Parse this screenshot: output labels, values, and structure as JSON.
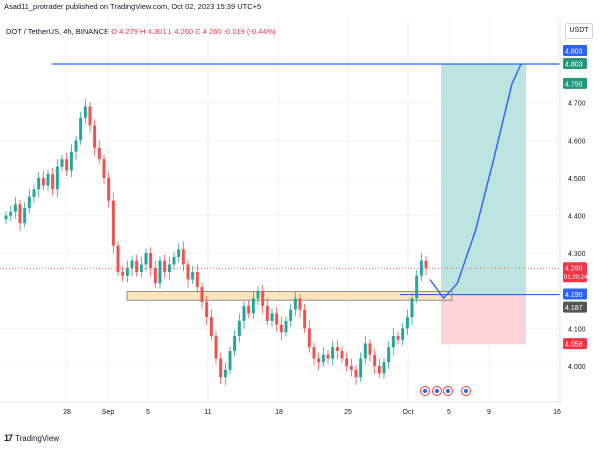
{
  "header": {
    "published_text": "Asad11_protrader published on TradingView.com, Oct 02, 2023 15:39 UTC+5"
  },
  "legend": {
    "symbol": "DOT / TetherUS, 4h, BINANCE",
    "open": "O 4.279",
    "high": "H 4.301",
    "low": "L 4.260",
    "close": "C 4.260",
    "change": "-0.019 (-0.44%)"
  },
  "currency_label": "USDT",
  "footer": {
    "brand": "TradingView",
    "logo_icon": "tradingview-logo-icon"
  },
  "colors": {
    "up": "#26a69a",
    "down": "#ef5350",
    "blue_line": "#2962ff",
    "target_zone": "#b2dfdb",
    "stop_zone": "#ffcdd2",
    "support_zone": "#fde3b6",
    "last_price_badge": "#f23645",
    "target_badge": "#22997e"
  },
  "chart_data": {
    "type": "candlestick",
    "symbol": "DOT/USDT",
    "timeframe": "4h",
    "exchange": "BINANCE",
    "y_ticks": [
      "4.700",
      "4.600",
      "4.500",
      "4.400",
      "4.300",
      "4.100",
      "4.000"
    ],
    "ylim": [
      3.9,
      4.83
    ],
    "x_ticks": [
      "28",
      "Sep",
      "5",
      "11",
      "18",
      "25",
      "Oct",
      "5",
      "9",
      "16"
    ],
    "price_axis_badges": [
      {
        "value": "4.803",
        "color": "#2962ff"
      },
      {
        "value": "4.803",
        "color": "#22997e"
      },
      {
        "value": "4.750",
        "color": "#22997e"
      },
      {
        "value": "4.260",
        "sub": "01:20:24",
        "color": "#f23645"
      },
      {
        "value": "4.190",
        "color": "#2962ff"
      },
      {
        "value": "4.187",
        "color": "#555555"
      },
      {
        "value": "4.058",
        "color": "#f23645"
      }
    ],
    "last_price": 4.26,
    "resistance_line": 4.803,
    "support_zone": [
      4.175,
      4.198
    ],
    "support_line": 4.19,
    "position": {
      "entry": 4.187,
      "target": 4.803,
      "stop": 4.058
    },
    "projected_path": [
      {
        "t": 0.0,
        "p": 4.23
      },
      {
        "t": 0.15,
        "p": 4.18
      },
      {
        "t": 0.3,
        "p": 4.22
      },
      {
        "t": 0.5,
        "p": 4.36
      },
      {
        "t": 0.7,
        "p": 4.55
      },
      {
        "t": 0.9,
        "p": 4.75
      },
      {
        "t": 1.0,
        "p": 4.803
      }
    ],
    "candles_close": [
      4.4,
      4.41,
      4.43,
      4.38,
      4.42,
      4.45,
      4.47,
      4.5,
      4.48,
      4.51,
      4.47,
      4.53,
      4.55,
      4.52,
      4.57,
      4.6,
      4.66,
      4.69,
      4.64,
      4.58,
      4.55,
      4.5,
      4.44,
      4.32,
      4.25,
      4.24,
      4.26,
      4.28,
      4.25,
      4.27,
      4.3,
      4.26,
      4.22,
      4.28,
      4.25,
      4.27,
      4.29,
      4.31,
      4.27,
      4.23,
      4.25,
      4.21,
      4.17,
      4.13,
      4.08,
      4.02,
      3.97,
      3.99,
      4.04,
      4.08,
      4.12,
      4.16,
      4.14,
      4.18,
      4.2,
      4.16,
      4.12,
      4.14,
      4.11,
      4.09,
      4.12,
      4.15,
      4.18,
      4.15,
      4.1,
      4.05,
      4.02,
      4.01,
      4.03,
      4.02,
      4.05,
      4.04,
      4.02,
      4.0,
      3.99,
      3.97,
      4.02,
      4.06,
      4.03,
      4.0,
      3.98,
      4.01,
      4.05,
      4.08,
      4.07,
      4.1,
      4.13,
      4.18,
      4.24,
      4.28,
      4.26
    ]
  }
}
